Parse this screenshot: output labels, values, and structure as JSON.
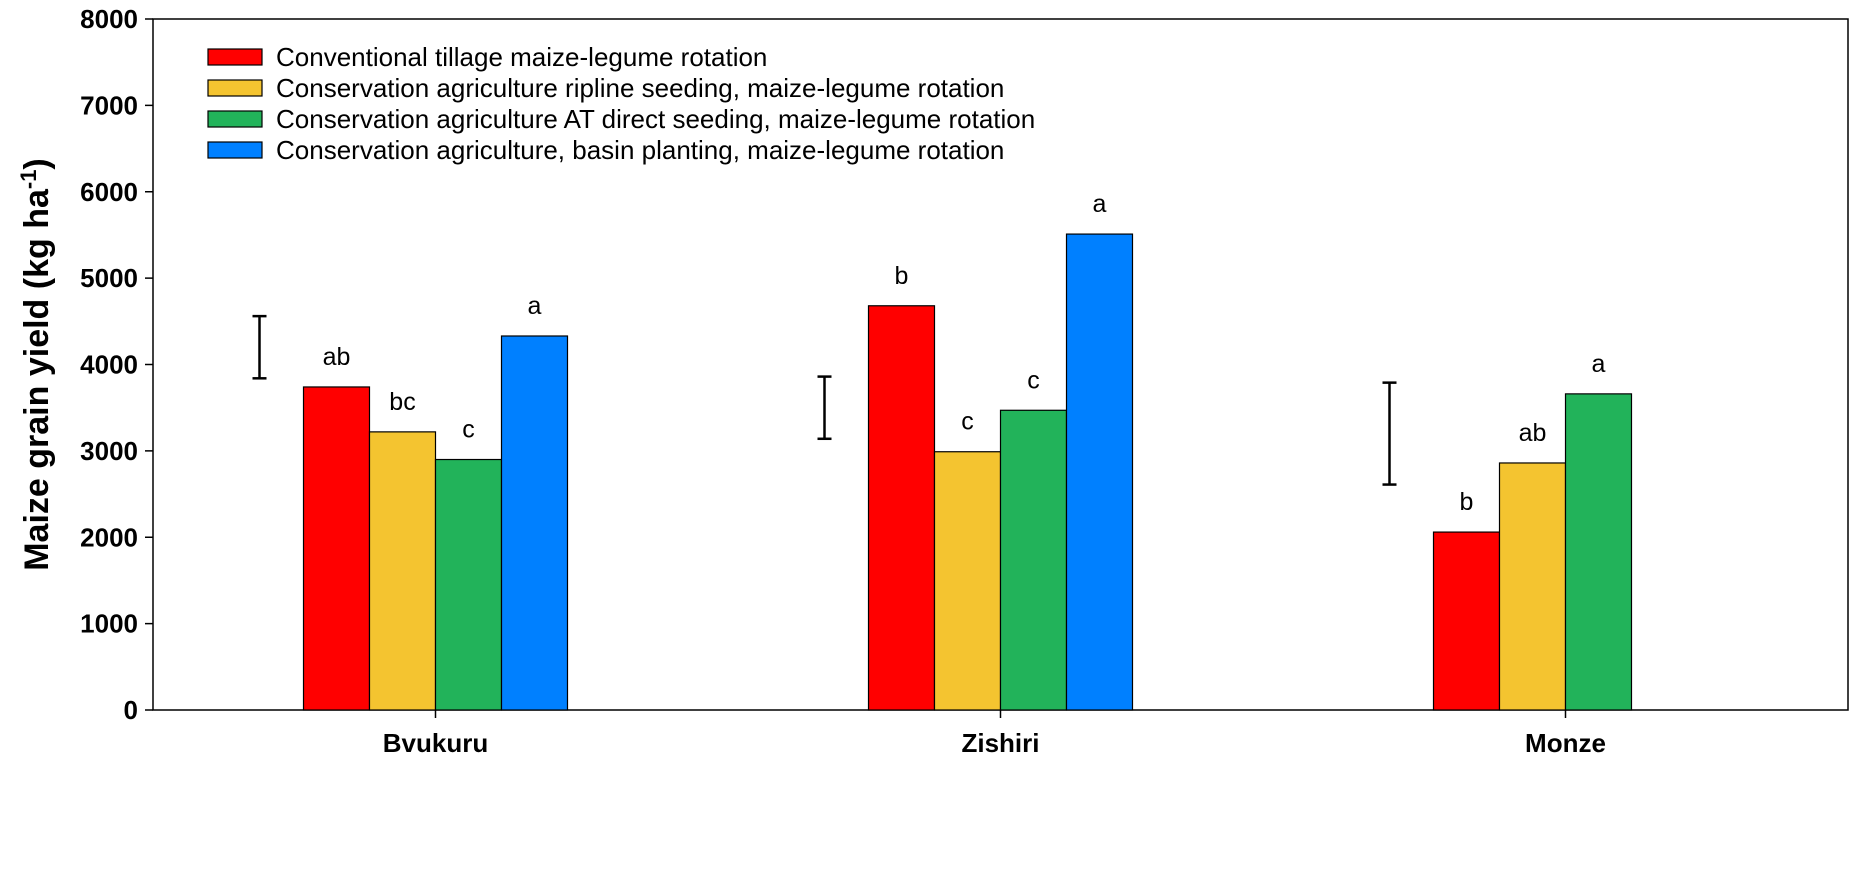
{
  "chart_data": {
    "type": "bar",
    "title": "",
    "xlabel": "",
    "ylabel": "Maize grain yield (kg ha",
    "ylabel_sup": "-1",
    "ylabel_suffix": ")",
    "ylim": [
      0,
      8000
    ],
    "yticks": [
      "0",
      "1000",
      "2000",
      "3000",
      "4000",
      "5000",
      "6000",
      "7000",
      "8000"
    ],
    "grid": false,
    "legend_position": "top-left",
    "categories": [
      "Bvukuru",
      "Zishiri",
      "Monze"
    ],
    "series": [
      {
        "name": "Conventional tillage maize-legume rotation",
        "color": "#ff0000",
        "values": [
          3740,
          4680,
          2060
        ],
        "labels": [
          "ab",
          "b",
          "b"
        ]
      },
      {
        "name": "Conservation agriculture ripline seeding, maize-legume rotation",
        "color": "#f4c430",
        "values": [
          3220,
          2990,
          2860
        ],
        "labels": [
          "bc",
          "c",
          "ab"
        ]
      },
      {
        "name": "Conservation agriculture AT direct seeding, maize-legume rotation",
        "color": "#22b35a",
        "values": [
          2900,
          3470,
          3660
        ],
        "labels": [
          "c",
          "c",
          "a"
        ]
      },
      {
        "name": "Conservation agriculture, basin planting, maize-legume rotation",
        "color": "#0080ff",
        "values": [
          4330,
          5510,
          null
        ],
        "labels": [
          "a",
          "a",
          ""
        ]
      }
    ],
    "error_bars": [
      {
        "category": "Bvukuru",
        "low": 3840,
        "high": 4560
      },
      {
        "category": "Zishiri",
        "low": 3140,
        "high": 3860
      },
      {
        "category": "Monze",
        "low": 2610,
        "high": 3790
      }
    ]
  }
}
